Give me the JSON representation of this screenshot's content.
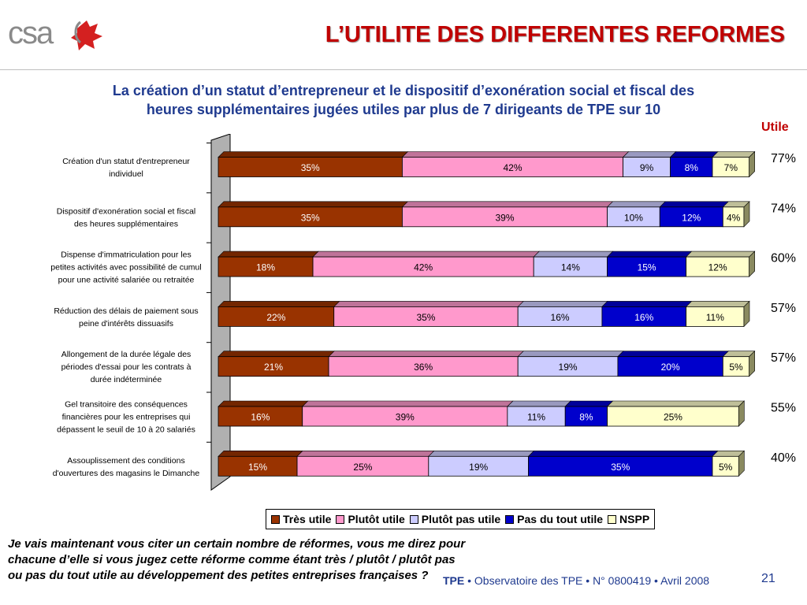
{
  "logo": {
    "text": "csa"
  },
  "slide": {
    "title": "L’UTILITE DES DIFFERENTES REFORMES",
    "subtitle_line1": "La création d’un statut d’entrepreneur et le dispositif d’exonération social et fiscal des",
    "subtitle_line2": "heures supplémentaires jugées utiles par plus de 7 dirigeants de TPE sur 10",
    "utile_header": "Utile",
    "footnote": "Je vais maintenant vous citer un certain nombre de réformes, vous me direz pour chacune d’elle si vous jugez cette réforme comme étant très / plutôt / plutôt pas ou pas du tout utile au développement des petites entreprises françaises ?",
    "footer_brand": "TPE",
    "footer_text": " • Observatoire des TPE • N° 0800419 • Avril 2008",
    "page_number": "21"
  },
  "chart_data": {
    "type": "bar",
    "orientation": "horizontal",
    "stacked": true,
    "xlim": [
      0,
      100
    ],
    "legend_position": "bottom",
    "categories": [
      [
        "Création d'un statut d'entrepreneur",
        "individuel"
      ],
      [
        "Dispositif d'exonération social et fiscal",
        "des heures supplémentaires"
      ],
      [
        "Dispense d'immatriculation pour les",
        "petites activités avec possibilité de cumul",
        "pour une activité salariée ou retraitée"
      ],
      [
        "Réduction des délais de paiement sous",
        "peine d'intérêts dissuasifs"
      ],
      [
        "Allongement de la durée légale des",
        "périodes d'essai pour les contrats à",
        "durée indéterminée"
      ],
      [
        "Gel transitoire des conséquences",
        "financières pour les entreprises qui",
        "dépassent le seuil de 10 à 20 salariés"
      ],
      [
        "Assouplissement des conditions",
        "d'ouvertures des magasins le Dimanche"
      ]
    ],
    "series": [
      {
        "name": "Très utile",
        "color": "#993300",
        "label_color": "#ffffff",
        "values": [
          35,
          35,
          18,
          22,
          21,
          16,
          15
        ]
      },
      {
        "name": "Plutôt utile",
        "color": "#ff99cc",
        "label_color": "#000000",
        "values": [
          42,
          39,
          42,
          35,
          36,
          39,
          25
        ]
      },
      {
        "name": "Plutôt pas utile",
        "color": "#ccccff",
        "label_color": "#000000",
        "values": [
          9,
          10,
          14,
          16,
          19,
          11,
          19
        ]
      },
      {
        "name": "Pas du tout utile",
        "color": "#0000cc",
        "label_color": "#ffffff",
        "values": [
          8,
          12,
          15,
          16,
          20,
          8,
          35
        ]
      },
      {
        "name": "NSPP",
        "color": "#ffffcc",
        "label_color": "#000000",
        "values": [
          7,
          4,
          12,
          11,
          5,
          25,
          5
        ]
      }
    ],
    "utile_totals": [
      "77%",
      "74%",
      "60%",
      "57%",
      "57%",
      "55%",
      "40%"
    ]
  }
}
